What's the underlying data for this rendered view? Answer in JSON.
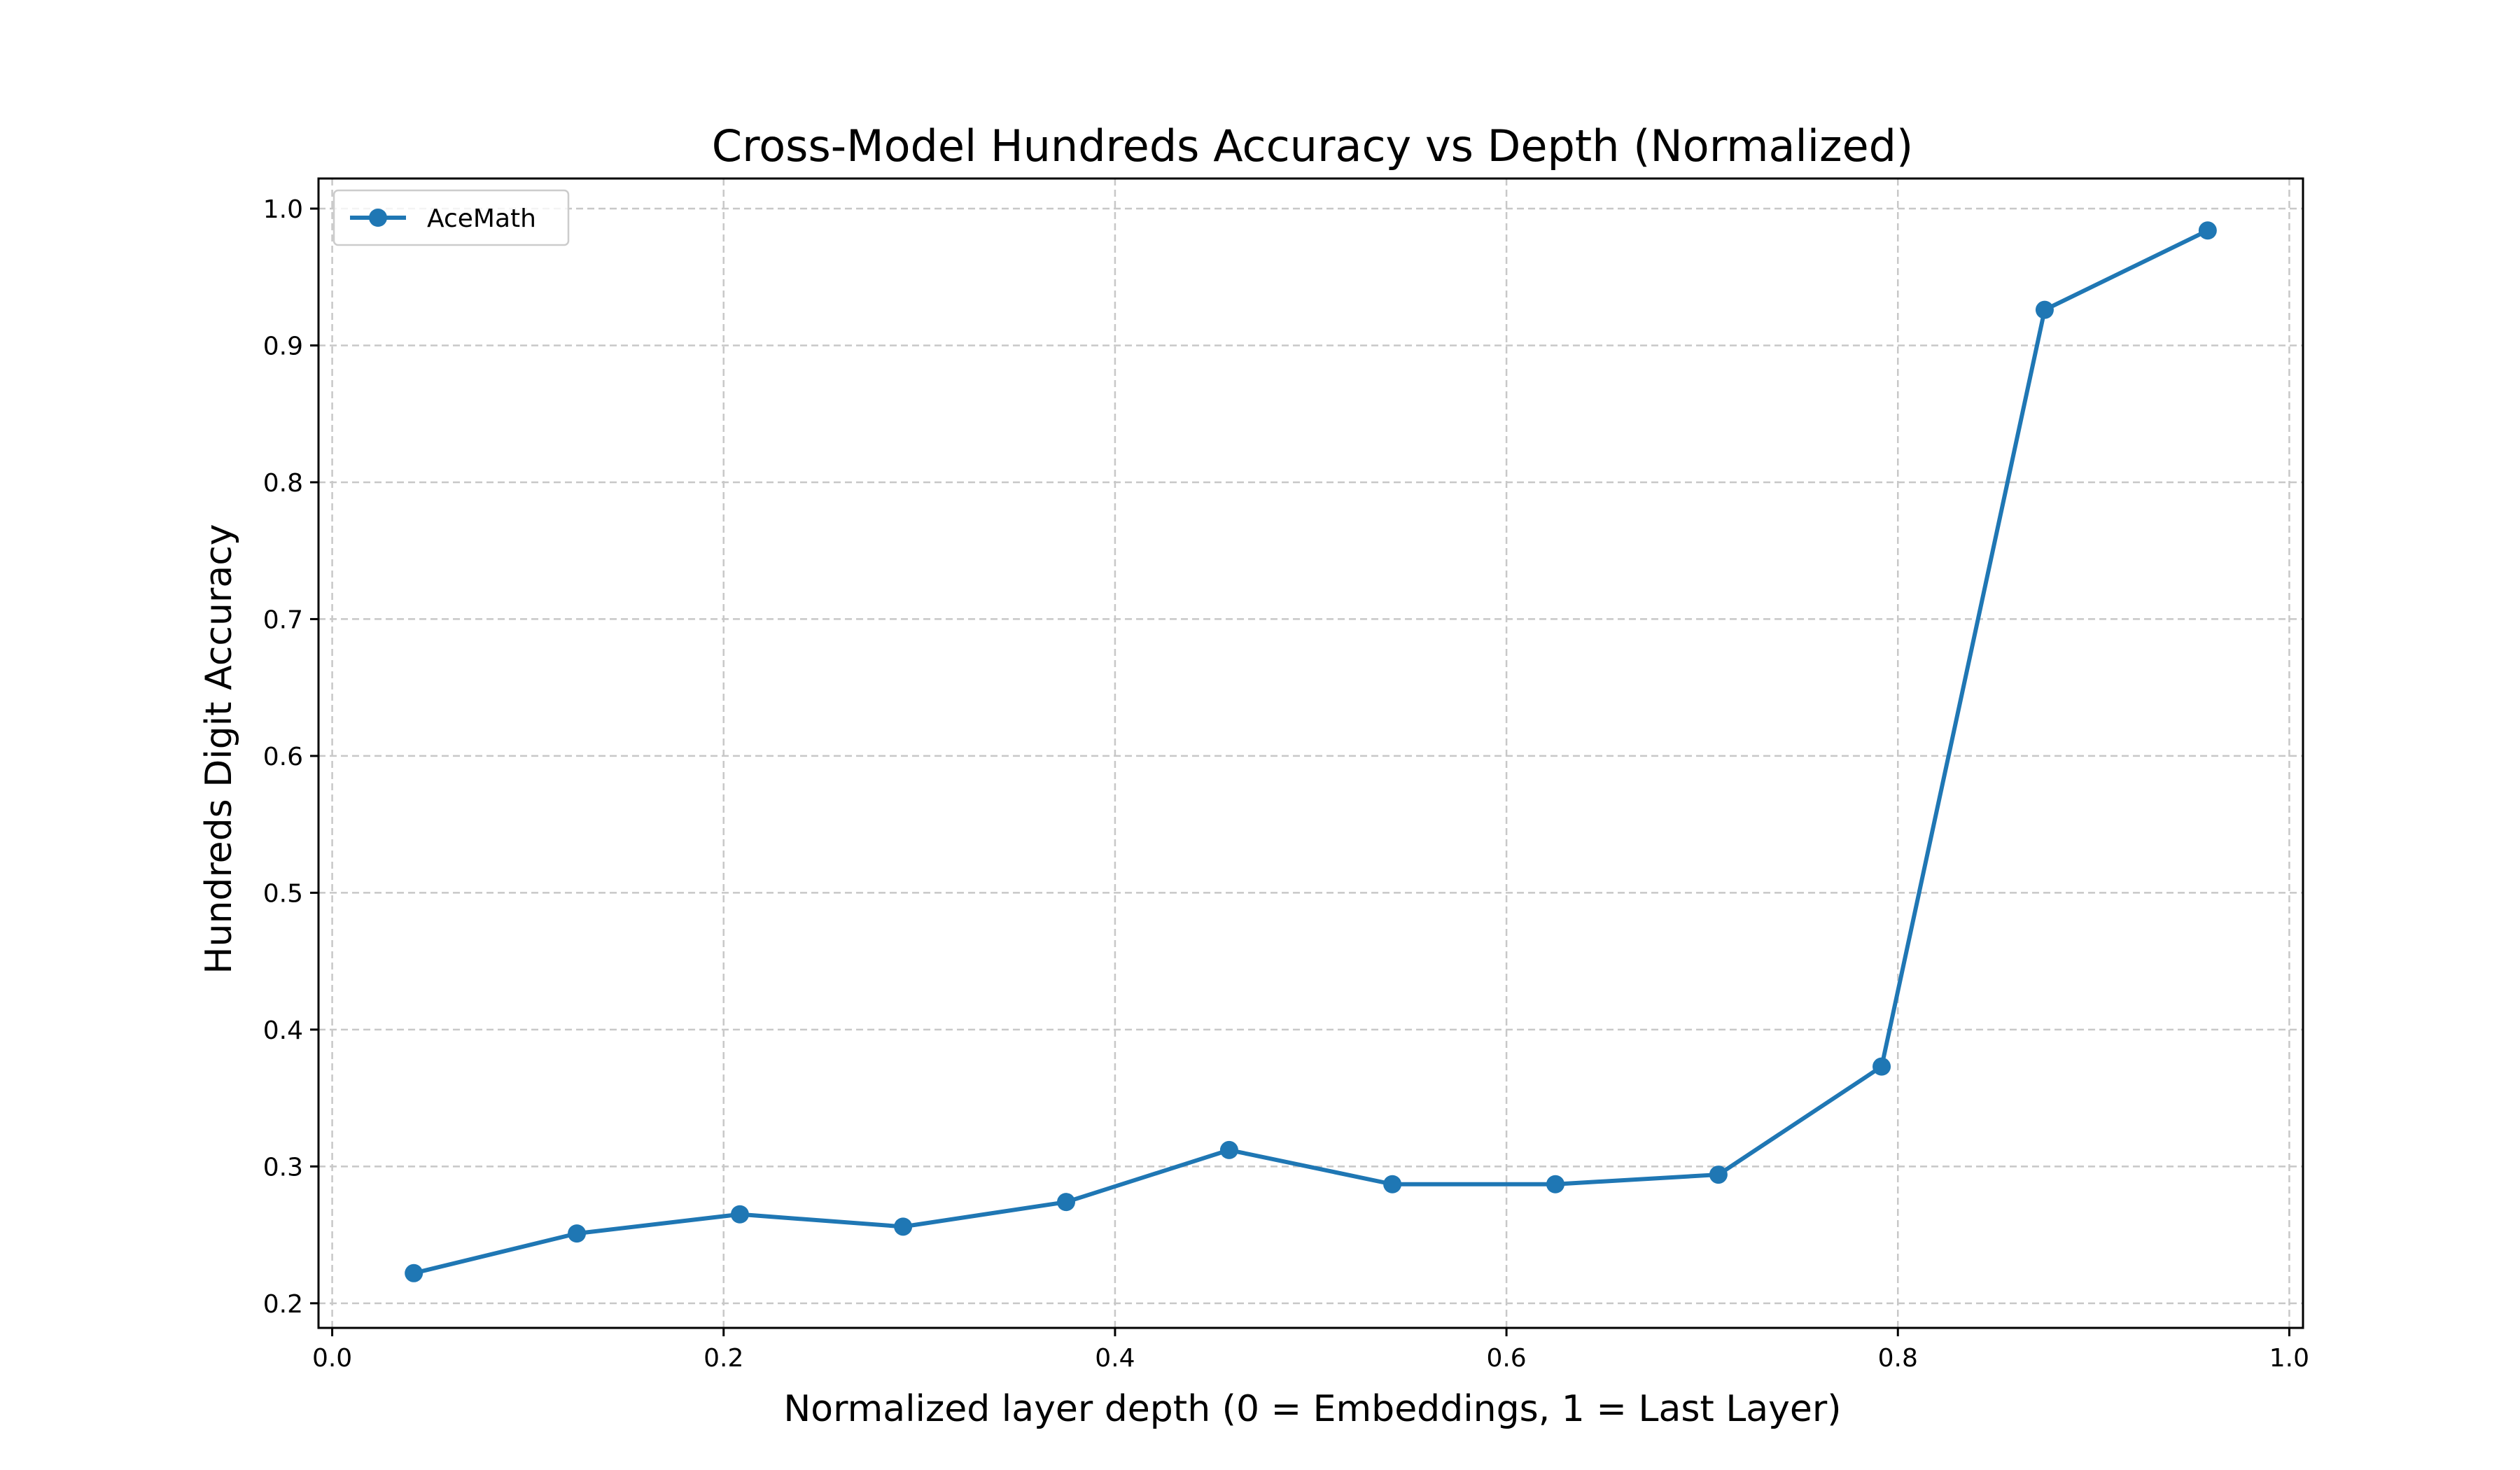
{
  "chart_data": {
    "type": "line",
    "title": "Cross-Model Hundreds Accuracy vs Depth (Normalized)",
    "xlabel": "Normalized layer depth (0 = Embeddings, 1 = Last Layer)",
    "ylabel": "Hundreds Digit Accuracy",
    "xlim": [
      -0.007,
      1.007
    ],
    "ylim": [
      0.182,
      1.022
    ],
    "xticks": [
      0.0,
      0.2,
      0.4,
      0.6,
      0.8,
      1.0
    ],
    "xtick_labels": [
      "0.0",
      "0.2",
      "0.4",
      "0.6",
      "0.8",
      "1.0"
    ],
    "yticks": [
      0.2,
      0.3,
      0.4,
      0.5,
      0.6,
      0.7,
      0.8,
      0.9,
      1.0
    ],
    "ytick_labels": [
      "0.2",
      "0.3",
      "0.4",
      "0.5",
      "0.6",
      "0.7",
      "0.8",
      "0.9",
      "1.0"
    ],
    "grid": true,
    "legend_position": "top-left",
    "series": [
      {
        "name": "AceMath",
        "color": "#1f77b4",
        "marker": "circle",
        "x": [
          0.0417,
          0.125,
          0.2083,
          0.2917,
          0.375,
          0.4583,
          0.5417,
          0.625,
          0.7083,
          0.7917,
          0.875,
          0.9583
        ],
        "y": [
          0.222,
          0.251,
          0.265,
          0.256,
          0.274,
          0.312,
          0.287,
          0.287,
          0.294,
          0.373,
          0.926,
          0.984
        ]
      }
    ]
  }
}
